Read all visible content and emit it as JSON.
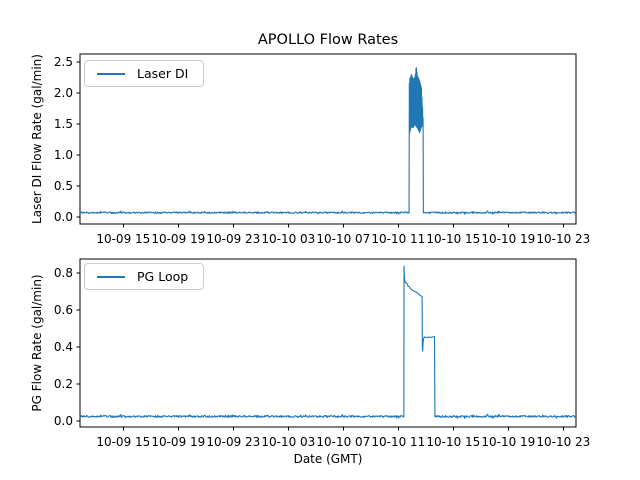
{
  "figure": {
    "title": "APOLLO Flow Rates",
    "xlabel": "Date (GMT)",
    "background_color": "#ffffff",
    "axes_edge_color": "#000000",
    "line_color": "#1f77b4",
    "legend_border_color": "#cccccc",
    "text_color": "#000000"
  },
  "chart_data": [
    {
      "type": "line",
      "title": "APOLLO Flow Rates",
      "ylabel": "Laser DI Flow Rate (gal/min)",
      "xlabel": "",
      "grid": false,
      "legend_position": "upper left",
      "x_encoding": "hours, 0 = 10-09 00:00 GMT",
      "xlim": [
        11.85,
        47.92
      ],
      "ylim": [
        -0.113,
        2.63
      ],
      "x_ticks": [
        15,
        19,
        23,
        27,
        31,
        35,
        39,
        43,
        47
      ],
      "x_tick_labels": [
        "10-09 15",
        "10-09 19",
        "10-09 23",
        "10-10 03",
        "10-10 07",
        "10-10 11",
        "10-10 15",
        "10-10 19",
        "10-10 23"
      ],
      "y_ticks": [
        0.0,
        0.5,
        1.0,
        1.5,
        2.0,
        2.5
      ],
      "y_tick_labels": [
        "0.0",
        "0.5",
        "1.0",
        "1.5",
        "2.0",
        "2.5"
      ],
      "series": [
        {
          "name": "Laser DI",
          "color": "#1f77b4",
          "segments": [
            {
              "type": "noisy_flat",
              "t_start": 11.85,
              "t_end": 35.78,
              "value": 0.07,
              "noise_amplitude": 0.012
            },
            {
              "type": "dense_oscillation",
              "description": "flow burst ~10-10 11:47 to 12:49 GMT, rapid oscillation between envelope lo/hi, brief peak 2.44",
              "envelope_t_lo_hi": [
                [
                  35.78,
                  0.07,
                  2.1
                ],
                [
                  35.82,
                  1.35,
                  2.22
                ],
                [
                  35.95,
                  1.46,
                  2.3
                ],
                [
                  36.08,
                  1.44,
                  2.22
                ],
                [
                  36.22,
                  1.5,
                  2.26
                ],
                [
                  36.3,
                  1.46,
                  2.44
                ],
                [
                  36.4,
                  1.43,
                  2.27
                ],
                [
                  36.55,
                  1.36,
                  2.2
                ],
                [
                  36.68,
                  1.45,
                  2.08
                ],
                [
                  36.78,
                  1.48,
                  1.7
                ],
                [
                  36.82,
                  0.07,
                  1.5
                ]
              ]
            },
            {
              "type": "noisy_flat",
              "t_start": 36.82,
              "t_end": 47.92,
              "value": 0.07,
              "noise_amplitude": 0.012
            }
          ]
        }
      ]
    },
    {
      "type": "line",
      "title": "",
      "ylabel": "PG Flow Rate (gal/min)",
      "xlabel": "Date (GMT)",
      "grid": false,
      "legend_position": "upper left",
      "x_encoding": "hours, 0 = 10-09 00:00 GMT",
      "xlim": [
        11.85,
        47.92
      ],
      "ylim": [
        -0.032,
        0.876
      ],
      "x_ticks": [
        15,
        19,
        23,
        27,
        31,
        35,
        39,
        43,
        47
      ],
      "x_tick_labels": [
        "10-09 15",
        "10-09 19",
        "10-09 23",
        "10-10 03",
        "10-10 07",
        "10-10 11",
        "10-10 15",
        "10-10 19",
        "10-10 23"
      ],
      "y_ticks": [
        0.0,
        0.2,
        0.4,
        0.6,
        0.8
      ],
      "y_tick_labels": [
        "0.0",
        "0.2",
        "0.4",
        "0.6",
        "0.8"
      ],
      "series": [
        {
          "name": "PG Loop",
          "color": "#1f77b4",
          "segments": [
            {
              "type": "noisy_flat",
              "t_start": 11.85,
              "t_end": 35.4,
              "value": 0.025,
              "noise_amplitude": 0.005
            },
            {
              "type": "polyline",
              "description": "burst ~10-10 11:24 to 13:40 GMT: spike to 0.84, plateau ~0.75 declining to ~0.67, step down to ~0.45 plateau, then off",
              "points": [
                [
                  35.4,
                  0.025
                ],
                [
                  35.415,
                  0.838
                ],
                [
                  35.43,
                  0.8
                ],
                [
                  35.46,
                  0.762
                ],
                [
                  35.52,
                  0.748
                ],
                [
                  35.6,
                  0.746
                ],
                [
                  35.67,
                  0.738
                ],
                [
                  35.7,
                  0.728
                ],
                [
                  35.8,
                  0.726
                ],
                [
                  35.85,
                  0.718
                ],
                [
                  35.95,
                  0.712
                ],
                [
                  36.0,
                  0.708
                ],
                [
                  36.12,
                  0.702
                ],
                [
                  36.3,
                  0.697
                ],
                [
                  36.42,
                  0.69
                ],
                [
                  36.55,
                  0.681
                ],
                [
                  36.7,
                  0.674
                ],
                [
                  36.73,
                  0.672
                ],
                [
                  36.745,
                  0.405
                ],
                [
                  36.77,
                  0.378
                ],
                [
                  36.8,
                  0.425
                ],
                [
                  36.84,
                  0.447
                ],
                [
                  36.9,
                  0.455
                ],
                [
                  37.05,
                  0.451
                ],
                [
                  37.2,
                  0.454
                ],
                [
                  37.35,
                  0.452
                ],
                [
                  37.5,
                  0.455
                ],
                [
                  37.63,
                  0.456
                ],
                [
                  37.655,
                  0.1
                ],
                [
                  37.66,
                  0.022
                ]
              ]
            },
            {
              "type": "noisy_flat",
              "t_start": 37.66,
              "t_end": 47.92,
              "value": 0.025,
              "noise_amplitude": 0.005
            }
          ]
        }
      ]
    }
  ]
}
